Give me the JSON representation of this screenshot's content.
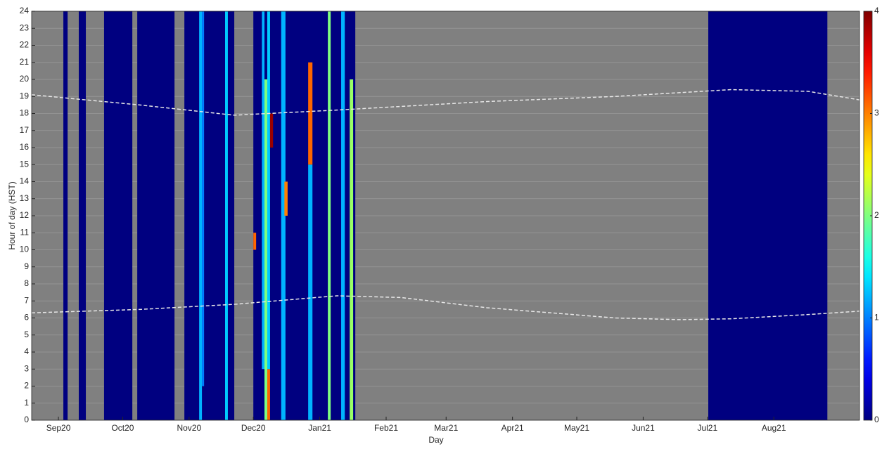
{
  "chart_data": {
    "type": "heatmap",
    "x_label": "Day",
    "y_label": "Hour of day (HST)",
    "xlim": [
      -12.5,
      374
    ],
    "ylim": [
      0,
      24
    ],
    "xticks": [
      {
        "value": 0,
        "label": "Sep20"
      },
      {
        "value": 30,
        "label": "Oct20"
      },
      {
        "value": 61,
        "label": "Nov20"
      },
      {
        "value": 91,
        "label": "Dec20"
      },
      {
        "value": 122,
        "label": "Jan21"
      },
      {
        "value": 153,
        "label": "Feb21"
      },
      {
        "value": 181,
        "label": "Mar21"
      },
      {
        "value": 212,
        "label": "Apr21"
      },
      {
        "value": 242,
        "label": "May21"
      },
      {
        "value": 273,
        "label": "Jun21"
      },
      {
        "value": 303,
        "label": "Jul21"
      },
      {
        "value": 334,
        "label": "Aug21"
      }
    ],
    "yticks": [
      0,
      1,
      2,
      3,
      4,
      5,
      6,
      7,
      8,
      9,
      10,
      11,
      12,
      13,
      14,
      15,
      16,
      17,
      18,
      19,
      20,
      21,
      22,
      23,
      24
    ],
    "clim": [
      0,
      4
    ],
    "cticks": [
      0,
      1,
      2,
      3,
      4
    ],
    "colormap": "jet",
    "missing_color": "#808080",
    "grid": true,
    "cells": [
      {
        "x": [
          2.3,
          4.3
        ],
        "y": [
          0,
          24
        ],
        "value": 0
      },
      {
        "x": [
          9.5,
          12.8
        ],
        "y": [
          0,
          24
        ],
        "value": 0
      },
      {
        "x": [
          21.3,
          34.5
        ],
        "y": [
          0,
          24
        ],
        "value": 0
      },
      {
        "x": [
          36.8,
          54.2
        ],
        "y": [
          0,
          24
        ],
        "value": 0
      },
      {
        "x": [
          58.8,
          82.1
        ],
        "y": [
          0,
          24
        ],
        "value": 0
      },
      {
        "x": [
          91,
          138.6
        ],
        "y": [
          0,
          24
        ],
        "value": 0
      },
      {
        "x": [
          303.4,
          359
        ],
        "y": [
          0,
          24
        ],
        "value": 0
      },
      {
        "x": [
          65.7,
          67
        ],
        "y": [
          0,
          24
        ],
        "value": 1.2
      },
      {
        "x": [
          67,
          68
        ],
        "y": [
          2,
          24
        ],
        "value": 1
      },
      {
        "x": [
          77.8,
          79.1
        ],
        "y": [
          0,
          24
        ],
        "value": 1.3
      },
      {
        "x": [
          95,
          96.2
        ],
        "y": [
          3,
          24
        ],
        "value": 1.2
      },
      {
        "x": [
          96.2,
          97.5
        ],
        "y": [
          0,
          20
        ],
        "value": 2
      },
      {
        "x": [
          97.5,
          98.8
        ],
        "y": [
          0,
          3
        ],
        "value": 3.1
      },
      {
        "x": [
          97.5,
          98.8
        ],
        "y": [
          3,
          24
        ],
        "value": 1.3
      },
      {
        "x": [
          98.8,
          100.2
        ],
        "y": [
          16,
          18
        ],
        "value": 3.9
      },
      {
        "x": [
          104,
          106
        ],
        "y": [
          0,
          24
        ],
        "value": 1.2
      },
      {
        "x": [
          105.5,
          107
        ],
        "y": [
          12,
          14
        ],
        "value": 3
      },
      {
        "x": [
          116.6,
          118.6
        ],
        "y": [
          0,
          15
        ],
        "value": 1.2
      },
      {
        "x": [
          116.6,
          118.6
        ],
        "y": [
          15,
          21
        ],
        "value": 3.1
      },
      {
        "x": [
          125.8,
          127.1
        ],
        "y": [
          0,
          24
        ],
        "value": 2
      },
      {
        "x": [
          132,
          133.7
        ],
        "y": [
          0,
          24
        ],
        "value": 1.2
      },
      {
        "x": [
          136,
          137.6
        ],
        "y": [
          0,
          20
        ],
        "value": 2.1
      },
      {
        "x": [
          91,
          92.3
        ],
        "y": [
          10,
          11
        ],
        "value": 3.1
      }
    ],
    "lines": [
      {
        "color": "#e6e6e6",
        "x": [
          -12.5,
          38,
          82,
          130,
          200,
          260,
          314,
          350,
          374
        ],
        "values": [
          19.1,
          18.5,
          17.9,
          18.2,
          18.7,
          19,
          19.4,
          19.3,
          18.8
        ]
      },
      {
        "color": "#e6e6e6",
        "x": [
          -12.5,
          38,
          82,
          130,
          160,
          200,
          260,
          290,
          314,
          350,
          374
        ],
        "values": [
          6.3,
          6.5,
          6.8,
          7.3,
          7.2,
          6.6,
          6,
          5.9,
          5.95,
          6.2,
          6.4
        ]
      }
    ]
  }
}
